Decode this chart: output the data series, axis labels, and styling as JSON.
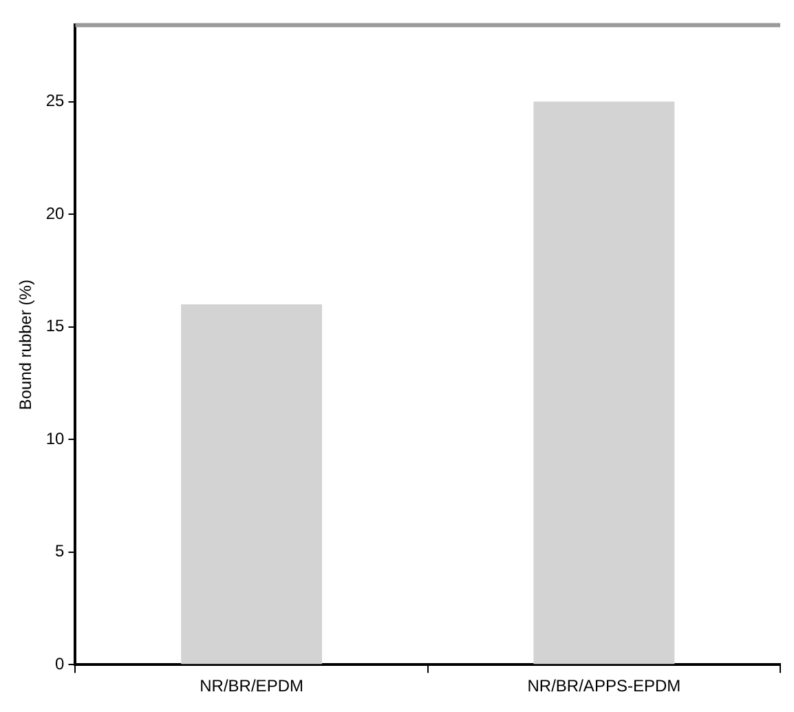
{
  "chart_data": {
    "type": "bar",
    "ylabel": "Bound rubber (%)",
    "categories": [
      "NR/BR/EPDM",
      "NR/BR/APPS-EPDM"
    ],
    "values": [
      16,
      25
    ],
    "color": "#d3d3d3",
    "ylim": [
      0,
      28.4
    ],
    "yticks": [
      0,
      5,
      10,
      15,
      20,
      25
    ],
    "grid": false,
    "legend": false
  }
}
